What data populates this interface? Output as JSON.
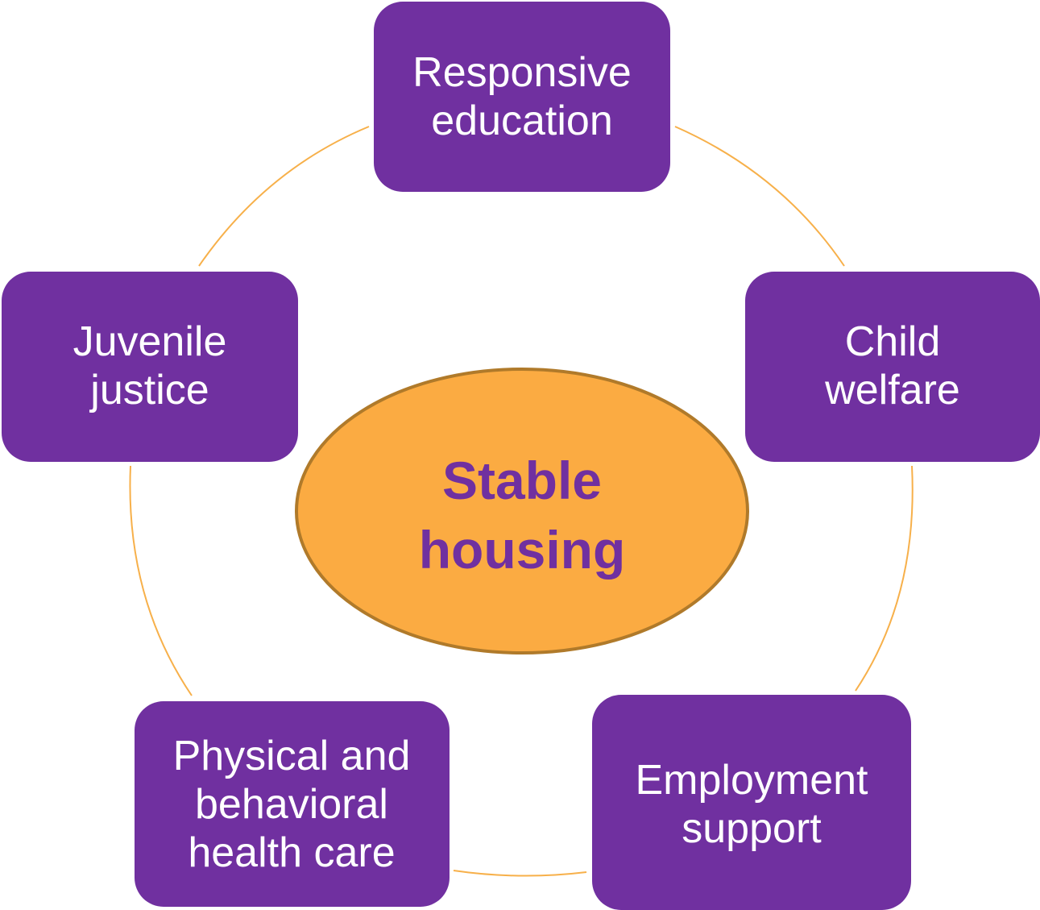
{
  "center": {
    "lines": [
      "Stable",
      "housing"
    ]
  },
  "nodes": [
    {
      "lines": [
        "Responsive",
        "education"
      ]
    },
    {
      "lines": [
        "Child",
        "welfare"
      ]
    },
    {
      "lines": [
        "Employment",
        "support"
      ]
    },
    {
      "lines": [
        "Physical and",
        "behavioral",
        "health care"
      ]
    },
    {
      "lines": [
        "Juvenile",
        "justice"
      ]
    }
  ]
}
